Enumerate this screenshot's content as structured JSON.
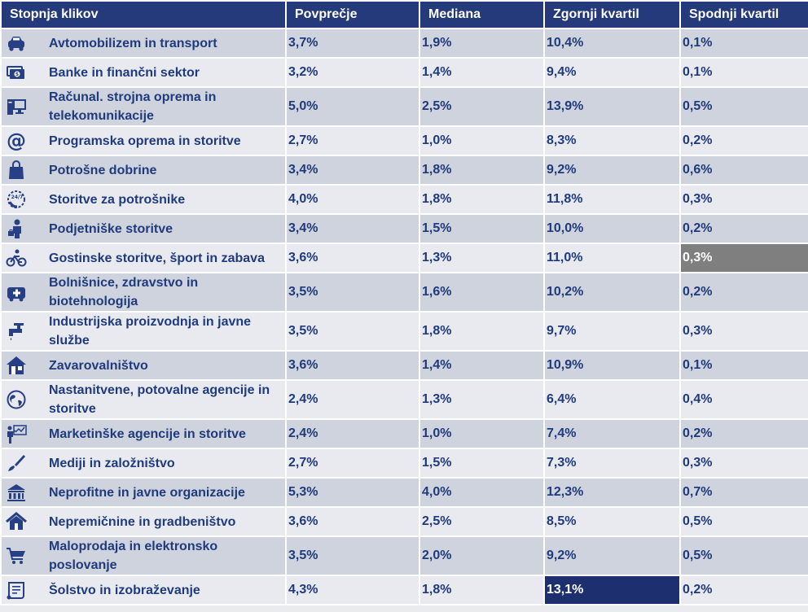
{
  "headers": [
    "Stopnja klikov",
    "Povprečje",
    "Mediana",
    "Zgornji kvartil",
    "Spodnji kvartil"
  ],
  "rows": [
    {
      "icon": "car-icon",
      "name": "Avtomobilizem in transport",
      "avg": "3,7%",
      "median": "1,9%",
      "upper": "10,4%",
      "lower": "0,1%"
    },
    {
      "icon": "money-icon",
      "name": "Banke in finančni sektor",
      "avg": "3,2%",
      "median": "1,4%",
      "upper": "9,4%",
      "lower": "0,1%"
    },
    {
      "icon": "computer-icon",
      "name": "Računal. strojna oprema in telekomunikacije",
      "avg": "5,0%",
      "median": "2,5%",
      "upper": "13,9%",
      "lower": "0,5%"
    },
    {
      "icon": "at-sign-icon",
      "name": "Programska oprema in storitve",
      "avg": "2,7%",
      "median": "1,0%",
      "upper": "8,3%",
      "lower": "0,2%"
    },
    {
      "icon": "shopping-bag-icon",
      "name": "Potrošne dobrine",
      "avg": "3,4%",
      "median": "1,8%",
      "upper": "9,2%",
      "lower": "0,6%"
    },
    {
      "icon": "support-24-7-icon",
      "name": "Storitve za potrošnike",
      "avg": "4,0%",
      "median": "1,8%",
      "upper": "11,8%",
      "lower": "0,3%"
    },
    {
      "icon": "businessman-icon",
      "name": "Podjetniške storitve",
      "avg": "3,4%",
      "median": "1,5%",
      "upper": "10,0%",
      "lower": "0,2%"
    },
    {
      "icon": "bicycle-icon",
      "name": "Gostinske storitve, šport in zabava",
      "avg": "3,6%",
      "median": "1,3%",
      "upper": "11,0%",
      "lower": "0,3%",
      "highlight_lower": "gray"
    },
    {
      "icon": "ambulance-icon",
      "name": "Bolnišnice, zdravstvo in biotehnologija",
      "avg": "3,5%",
      "median": "1,6%",
      "upper": "10,2%",
      "lower": "0,2%"
    },
    {
      "icon": "faucet-icon",
      "name": "Industrijska proizvodnja in javne službe",
      "avg": "3,5%",
      "median": "1,8%",
      "upper": "9,7%",
      "lower": "0,3%"
    },
    {
      "icon": "house-insurance-icon",
      "name": "Zavarovalništvo",
      "avg": "3,6%",
      "median": "1,4%",
      "upper": "10,9%",
      "lower": "0,1%"
    },
    {
      "icon": "globe-icon",
      "name": "Nastanitvene, potovalne agencije in storitve",
      "avg": "2,4%",
      "median": "1,3%",
      "upper": "6,4%",
      "lower": "0,4%"
    },
    {
      "icon": "presenter-icon",
      "name": "Marketinške agencije in storitve",
      "avg": "2,4%",
      "median": "1,0%",
      "upper": "7,4%",
      "lower": "0,2%"
    },
    {
      "icon": "brush-icon",
      "name": "Mediji in založništvo",
      "avg": "2,7%",
      "median": "1,5%",
      "upper": "7,3%",
      "lower": "0,3%"
    },
    {
      "icon": "institution-icon",
      "name": "Neprofitne in javne organizacije",
      "avg": "5,3%",
      "median": "4,0%",
      "upper": "12,3%",
      "lower": "0,7%"
    },
    {
      "icon": "house-icon",
      "name": "Nepremičnine in gradbeništvo",
      "avg": "3,6%",
      "median": "2,5%",
      "upper": "8,5%",
      "lower": "0,5%"
    },
    {
      "icon": "shopping-cart-icon",
      "name": "Maloprodaja in elektronsko poslovanje",
      "avg": "3,5%",
      "median": "2,0%",
      "upper": "9,2%",
      "lower": "0,5%"
    },
    {
      "icon": "diploma-icon",
      "name": "Šolstvo in izobraževanje",
      "avg": "4,3%",
      "median": "1,8%",
      "upper": "13,1%",
      "lower": "0,2%",
      "highlight_upper": "navy"
    }
  ],
  "colors": {
    "header": "#243a7a",
    "row_odd": "#cfd3dd",
    "row_even": "#e8eaef",
    "text": "#1f3b7d",
    "highlight_gray": "#7f7f7f",
    "highlight_navy": "#1d2f6f"
  }
}
